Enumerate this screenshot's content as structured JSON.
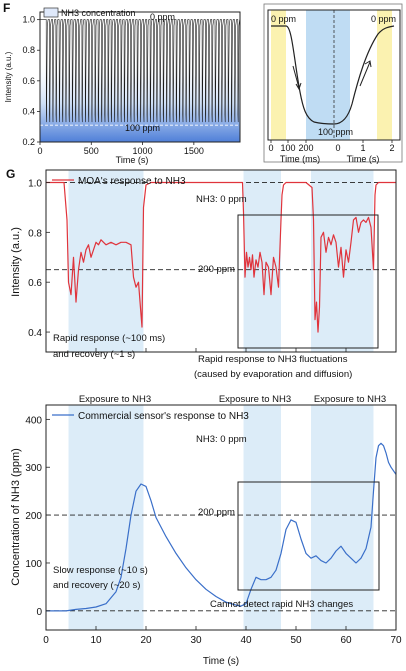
{
  "chart_data": [
    {
      "panel": "F",
      "type": "line",
      "legend": "NH3 concentration",
      "legend_sub": "3",
      "xlabel": "Time (s)",
      "ylabel": "Intensity (a.u.)",
      "xlim": [
        0,
        1950
      ],
      "ylim": [
        0.2,
        1.05
      ],
      "xticks": [
        "0",
        "500",
        "1000",
        "1500"
      ],
      "yticks": [
        "0.2",
        "0.4",
        "0.6",
        "0.8",
        "1.0"
      ],
      "annotations": {
        "top": "0 ppm",
        "bottom": "100 ppm"
      },
      "cycles": 60,
      "high": 1.0,
      "low": 0.33
    },
    {
      "panel": "F-inset",
      "type": "line",
      "xlabel_left": "Time (ms)",
      "xlabel_right": "Time (s)",
      "xticks_left": [
        "0",
        "100",
        "200"
      ],
      "xticks_right": [
        "0",
        "1",
        "2"
      ],
      "annotations": {
        "top_left": "0 ppm",
        "top_right": "0 ppm",
        "bottom": "100 ppm"
      }
    },
    {
      "panel": "G",
      "type": "line",
      "legend": "MOA's response to NH3",
      "ylabel": "Intensity (a.u.)",
      "xlim": [
        0,
        70
      ],
      "ylim": [
        0.32,
        1.05
      ],
      "yticks": [
        "0.4",
        "0.6",
        "0.8",
        "1.0"
      ],
      "reference_lines": [
        {
          "y": 1.0,
          "label": "NH3: 0 ppm"
        },
        {
          "y": 0.65,
          "label": "200 ppm"
        }
      ],
      "exposure_label": "Exposure to NH3",
      "exposures": [
        [
          4.5,
          19.5
        ],
        [
          39.5,
          47
        ],
        [
          53,
          65.5
        ]
      ],
      "annotations": [
        {
          "lines": [
            "Rapid response (~100 ms)",
            "and recovery (~1 s)"
          ]
        },
        {
          "lines": [
            "Rapid response to NH3 fluctuations",
            "(caused by evaporation and diffusion)"
          ]
        }
      ],
      "x": [
        0,
        3.6,
        4.2,
        4.5,
        5.0,
        5.5,
        6,
        6.5,
        7,
        7.5,
        8,
        8.5,
        9,
        9.5,
        10,
        10.5,
        11,
        12,
        13,
        14,
        15,
        16,
        17,
        17.5,
        18,
        18.5,
        19,
        19.2,
        19.5,
        20,
        21,
        25,
        30,
        35,
        39.3,
        39.5,
        39.8,
        40.1,
        40.4,
        40.7,
        41,
        41.3,
        41.6,
        42,
        42.4,
        42.8,
        43.2,
        43.6,
        44,
        44.5,
        45,
        45.5,
        46,
        46.5,
        47,
        47.2,
        47.5,
        48,
        50,
        52,
        53.2,
        53.5,
        53.8,
        54.1,
        54.4,
        54.7,
        55,
        55.5,
        56,
        56.5,
        57,
        57.5,
        58,
        58.5,
        59,
        59.5,
        60,
        60.5,
        61,
        61.5,
        62,
        62.5,
        63,
        63.5,
        64,
        64.5,
        65,
        65.5,
        65.8,
        66,
        66.5,
        67,
        68,
        70
      ],
      "y": [
        1.0,
        1.0,
        0.85,
        0.6,
        0.55,
        0.7,
        0.52,
        0.65,
        0.72,
        0.68,
        0.73,
        0.75,
        0.7,
        0.73,
        0.76,
        0.75,
        0.77,
        0.75,
        0.76,
        0.75,
        0.76,
        0.76,
        0.75,
        0.62,
        0.58,
        0.6,
        0.47,
        0.42,
        0.9,
        0.99,
        1.0,
        1.0,
        1.0,
        1.0,
        1.0,
        0.88,
        0.62,
        0.72,
        0.66,
        0.7,
        0.65,
        0.71,
        0.62,
        0.69,
        0.66,
        0.72,
        0.68,
        0.55,
        0.68,
        0.66,
        0.55,
        0.7,
        0.66,
        0.58,
        0.85,
        0.95,
        0.99,
        1.0,
        1.0,
        1.0,
        0.98,
        0.85,
        0.45,
        0.52,
        0.4,
        0.5,
        0.78,
        0.8,
        0.72,
        0.78,
        0.75,
        0.79,
        0.76,
        0.66,
        0.74,
        0.62,
        0.73,
        0.68,
        0.76,
        0.85,
        0.86,
        0.8,
        0.84,
        0.85,
        0.84,
        0.86,
        0.82,
        0.65,
        0.95,
        0.99,
        1.0,
        1.0,
        1.0,
        1.0
      ]
    },
    {
      "panel": "G-bottom",
      "type": "line",
      "legend": "Commercial sensor's response to NH3",
      "xlabel": "Time (s)",
      "ylabel": "Concentration of NH3 (ppm)",
      "xlim": [
        0,
        70
      ],
      "ylim": [
        -40,
        430
      ],
      "xticks": [
        "0",
        "10",
        "20",
        "30",
        "40",
        "50",
        "60",
        "70"
      ],
      "yticks": [
        "0",
        "100",
        "200",
        "300",
        "400"
      ],
      "reference_lines": [
        {
          "y": 0,
          "label": "NH3: 0 ppm"
        },
        {
          "y": 200,
          "label": "200 ppm"
        }
      ],
      "exposures": [
        [
          4.5,
          19.5
        ],
        [
          39.5,
          47
        ],
        [
          53,
          65.5
        ]
      ],
      "annotations": [
        {
          "lines": [
            "Slow response (~10 s)",
            "and recovery (~20 s)"
          ]
        },
        {
          "lines": [
            "Cannot detect rapid NH3 changes"
          ]
        }
      ],
      "x": [
        0,
        4,
        6,
        8,
        10,
        12,
        14,
        15,
        16,
        17,
        18,
        19,
        20,
        21,
        22,
        24,
        26,
        28,
        30,
        32,
        34,
        36,
        38,
        39,
        40,
        41,
        42,
        43,
        44,
        45,
        46,
        47,
        48,
        49,
        50,
        51,
        52,
        53,
        54,
        55,
        56,
        57,
        58,
        59,
        60,
        61,
        62,
        63,
        64,
        65,
        65.5,
        66,
        66.5,
        67,
        67.5,
        68,
        68.5,
        69,
        70
      ],
      "y": [
        0,
        0,
        3,
        5,
        8,
        15,
        40,
        70,
        130,
        200,
        250,
        265,
        260,
        230,
        195,
        155,
        120,
        90,
        65,
        45,
        30,
        18,
        12,
        10,
        15,
        45,
        70,
        65,
        65,
        70,
        85,
        120,
        170,
        190,
        185,
        150,
        120,
        110,
        115,
        105,
        100,
        110,
        125,
        135,
        120,
        110,
        100,
        110,
        130,
        175,
        250,
        320,
        345,
        350,
        345,
        330,
        310,
        300,
        285
      ]
    }
  ]
}
